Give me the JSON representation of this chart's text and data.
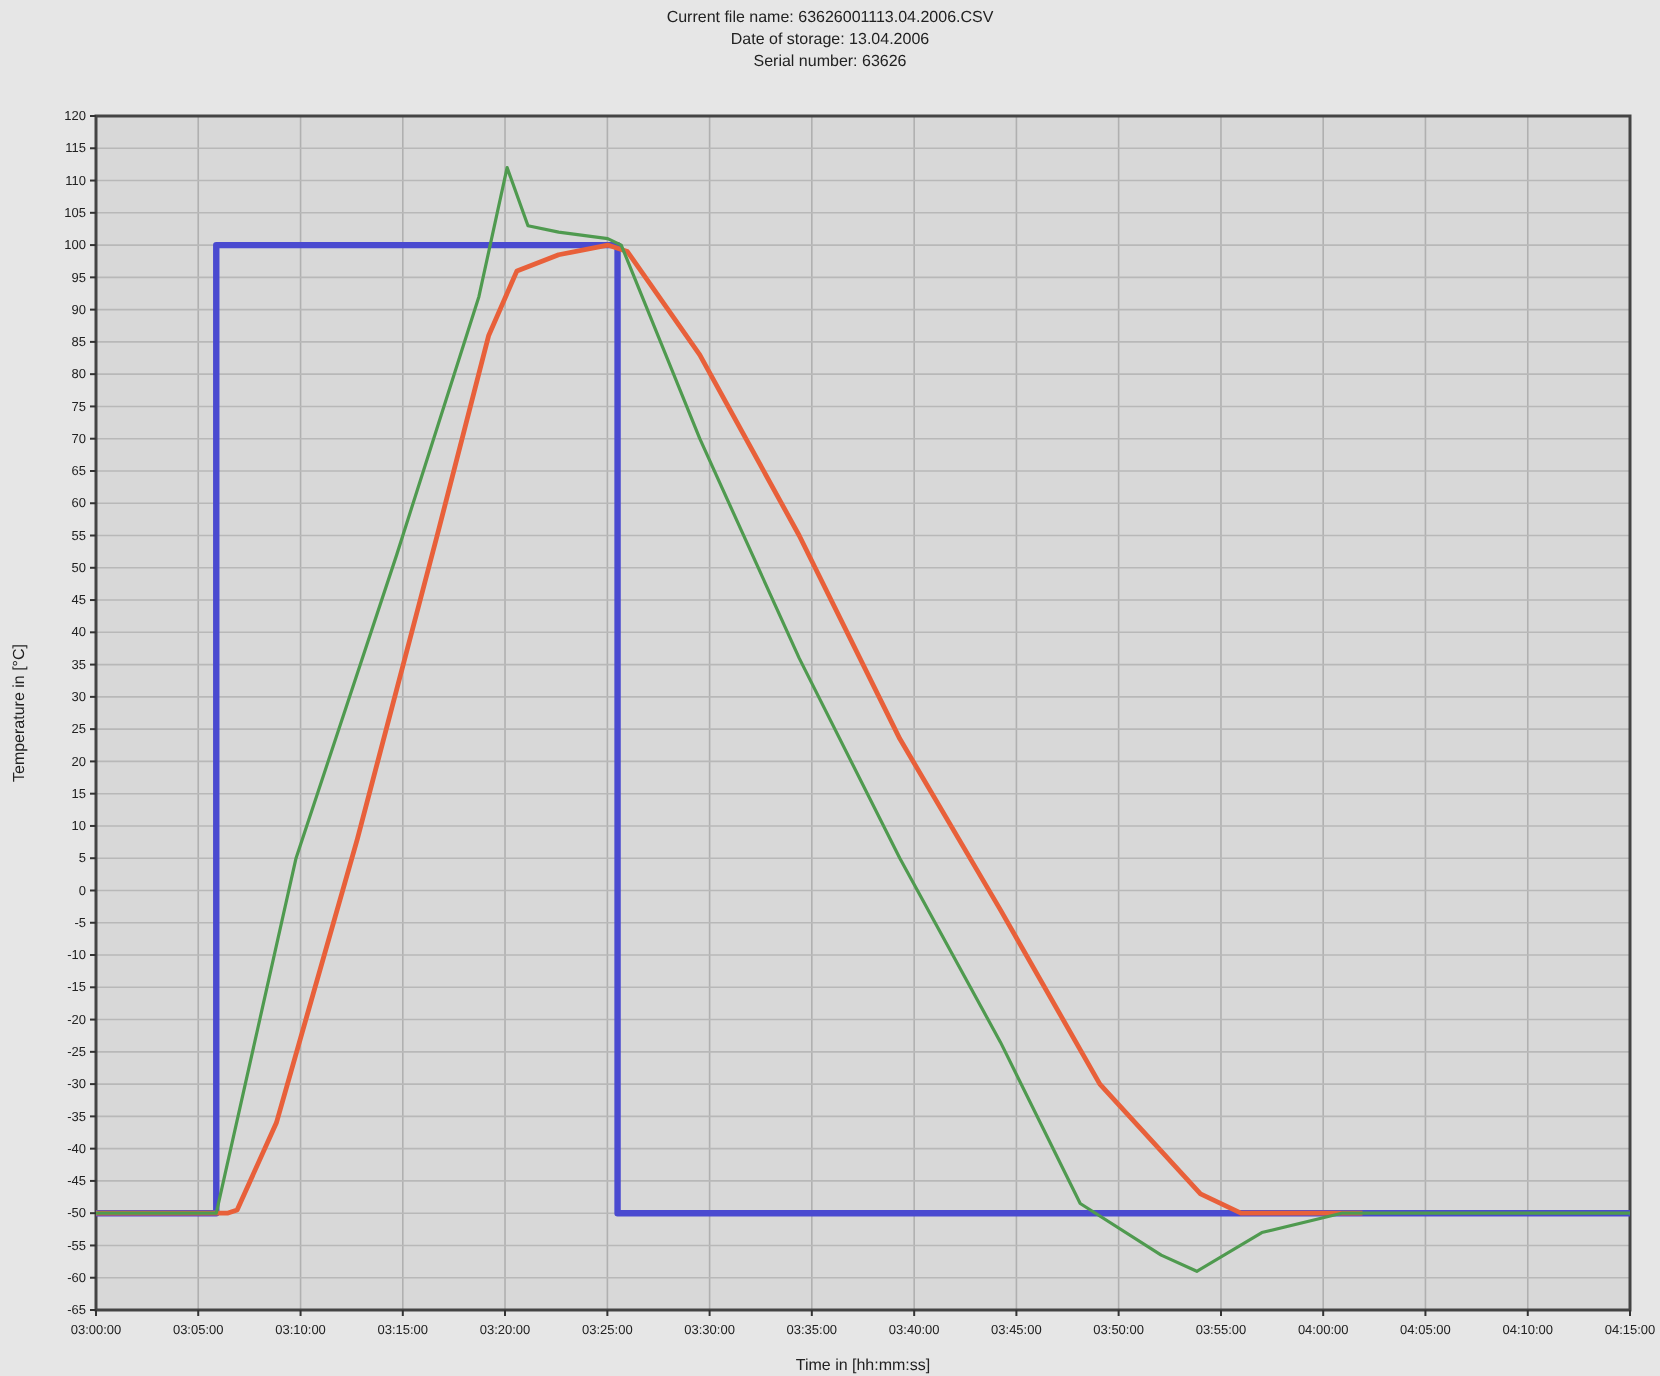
{
  "chart_data": {
    "type": "line",
    "title": "Current file name: 63626001113.04.2006.CSV",
    "subtitle": "Date of storage: 13.04.2006\nSerial number: 63626",
    "xlabel": "Time in [hh:mm:ss]",
    "ylabel": "Temperature in [°C]",
    "xlim": [
      3,
      4.25
    ],
    "xticks": [
      {
        "value": 3,
        "label": "03:00:00"
      },
      {
        "value": 3.0833,
        "label": "03:05:00"
      },
      {
        "value": 3.1667,
        "label": "03:10:00"
      },
      {
        "value": 3.25,
        "label": "03:15:00"
      },
      {
        "value": 3.3333,
        "label": "03:20:00"
      },
      {
        "value": 3.4167,
        "label": "03:25:00"
      },
      {
        "value": 3.5,
        "label": "03:30:00"
      },
      {
        "value": 3.5833,
        "label": "03:35:00"
      },
      {
        "value": 3.6667,
        "label": "03:40:00"
      },
      {
        "value": 3.75,
        "label": "03:45:00"
      },
      {
        "value": 3.8333,
        "label": "03:50:00"
      },
      {
        "value": 3.9167,
        "label": "03:55:00"
      },
      {
        "value": 4,
        "label": "04:00:00"
      },
      {
        "value": 4.0833,
        "label": "04:05:00"
      },
      {
        "value": 4.1667,
        "label": "04:10:00"
      },
      {
        "value": 4.25,
        "label": "04:15:00"
      }
    ],
    "ylim": [
      -65,
      120
    ],
    "yticks": [
      120,
      115,
      110,
      105,
      100,
      95,
      90,
      85,
      80,
      75,
      70,
      65,
      60,
      55,
      50,
      45,
      40,
      35,
      30,
      25,
      20,
      15,
      10,
      5,
      0,
      -5,
      -10,
      -15,
      -20,
      -25,
      -30,
      -35,
      -40,
      -45,
      -50,
      -55,
      -60,
      -65
    ],
    "grid": true,
    "series": [
      {
        "type": "step",
        "color": "#4a4ad0",
        "x": [
          3,
          3.098,
          3.425,
          4.25
        ],
        "values": [
          -50,
          100,
          -50,
          -50
        ]
      },
      {
        "color": "#e8603a",
        "x": [
          3,
          3.107,
          3.115,
          3.147,
          3.213,
          3.278,
          3.32,
          3.343,
          3.377,
          3.417,
          3.433,
          3.492,
          3.573,
          3.655,
          3.737,
          3.818,
          3.9,
          3.933,
          4.032
        ],
        "values": [
          -50,
          -50,
          -49.5,
          -36,
          8,
          55,
          86,
          96,
          98.5,
          100,
          99,
          83,
          55,
          23.5,
          -3,
          -30,
          -47,
          -50,
          -50
        ]
      },
      {
        "color": "#4f9a4f",
        "x": [
          3,
          3.098,
          3.163,
          3.245,
          3.312,
          3.335,
          3.352,
          3.377,
          3.417,
          3.428,
          3.492,
          3.573,
          3.655,
          3.737,
          3.802,
          3.868,
          3.897,
          3.95,
          4.015,
          4.25
        ],
        "values": [
          -50,
          -50,
          5,
          52,
          92,
          112,
          103,
          102,
          101,
          100,
          70,
          36,
          5,
          -23.5,
          -48.5,
          -56.5,
          -59,
          -53,
          -50,
          -50
        ]
      }
    ]
  }
}
